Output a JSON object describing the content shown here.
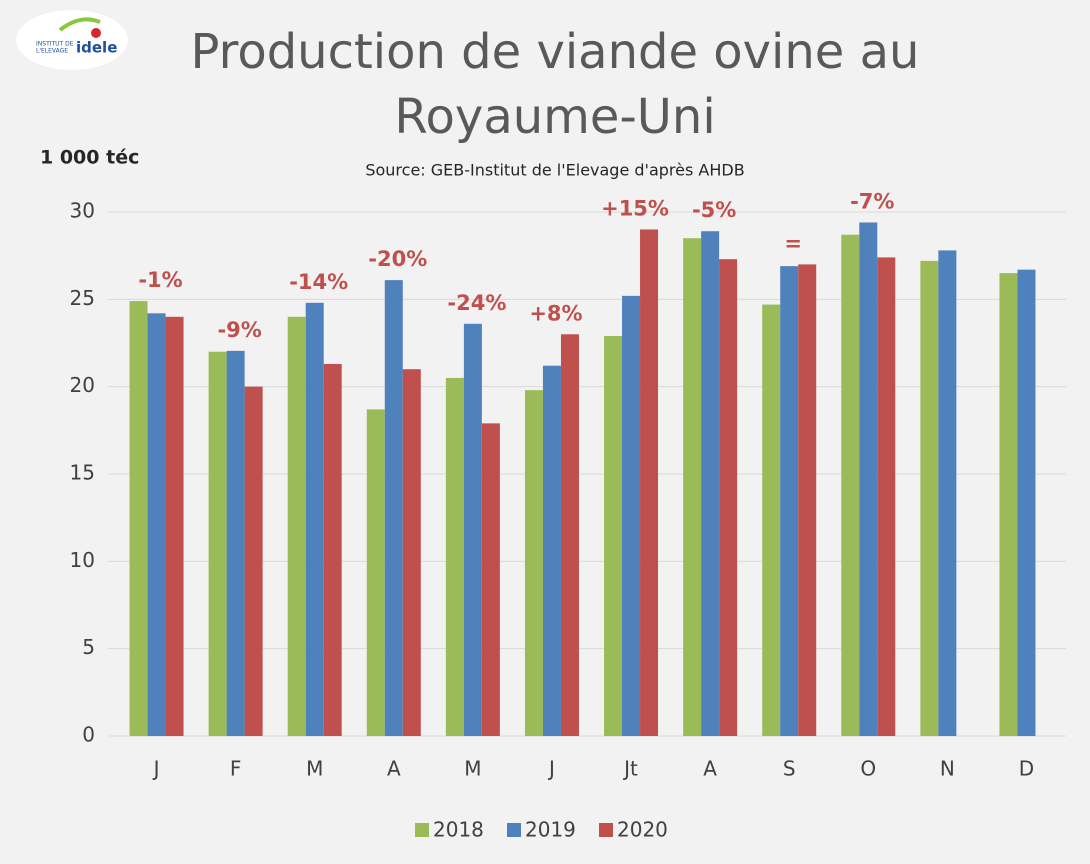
{
  "chart_data": {
    "type": "bar",
    "title_lines": [
      "Production de viande ovine au",
      "Royaume-Uni"
    ],
    "subtitle": "Source: GEB-Institut de l'Elevage d'après AHDB",
    "y_label": "1 000 téc",
    "logo": {
      "line1": "INSTITUT DE",
      "line2": "L'ELEVAGE",
      "brand": "idele"
    },
    "categories": [
      "J",
      "F",
      "M",
      "A",
      "M",
      "J",
      "Jt",
      "A",
      "S",
      "O",
      "N",
      "D"
    ],
    "series": [
      {
        "name": "2018",
        "color": "#9bbb59",
        "values": [
          24.9,
          22,
          24,
          18.7,
          20.5,
          19.8,
          22.9,
          28.5,
          24.7,
          28.7,
          27.2,
          26.5
        ]
      },
      {
        "name": "2019",
        "color": "#4f81bd",
        "values": [
          24.2,
          22.05,
          24.8,
          26.1,
          23.6,
          21.2,
          25.2,
          28.9,
          26.9,
          29.4,
          27.8,
          26.7
        ]
      },
      {
        "name": "2020",
        "color": "#c0504d",
        "values": [
          24,
          20,
          21.3,
          21,
          17.9,
          23,
          29,
          27.3,
          27,
          27.4,
          null,
          null
        ]
      }
    ],
    "annotations": [
      "-1%",
      "-9%",
      "-14%",
      "-20%",
      "-24%",
      "+8%",
      "+15%",
      "-5%",
      "=",
      "-7%",
      null,
      null
    ],
    "annotation_color": "#c0504d",
    "ylim": [
      0,
      30
    ],
    "yticks": [
      0,
      5,
      10,
      15,
      20,
      25,
      30
    ],
    "grid": true,
    "legend": "bottom"
  }
}
